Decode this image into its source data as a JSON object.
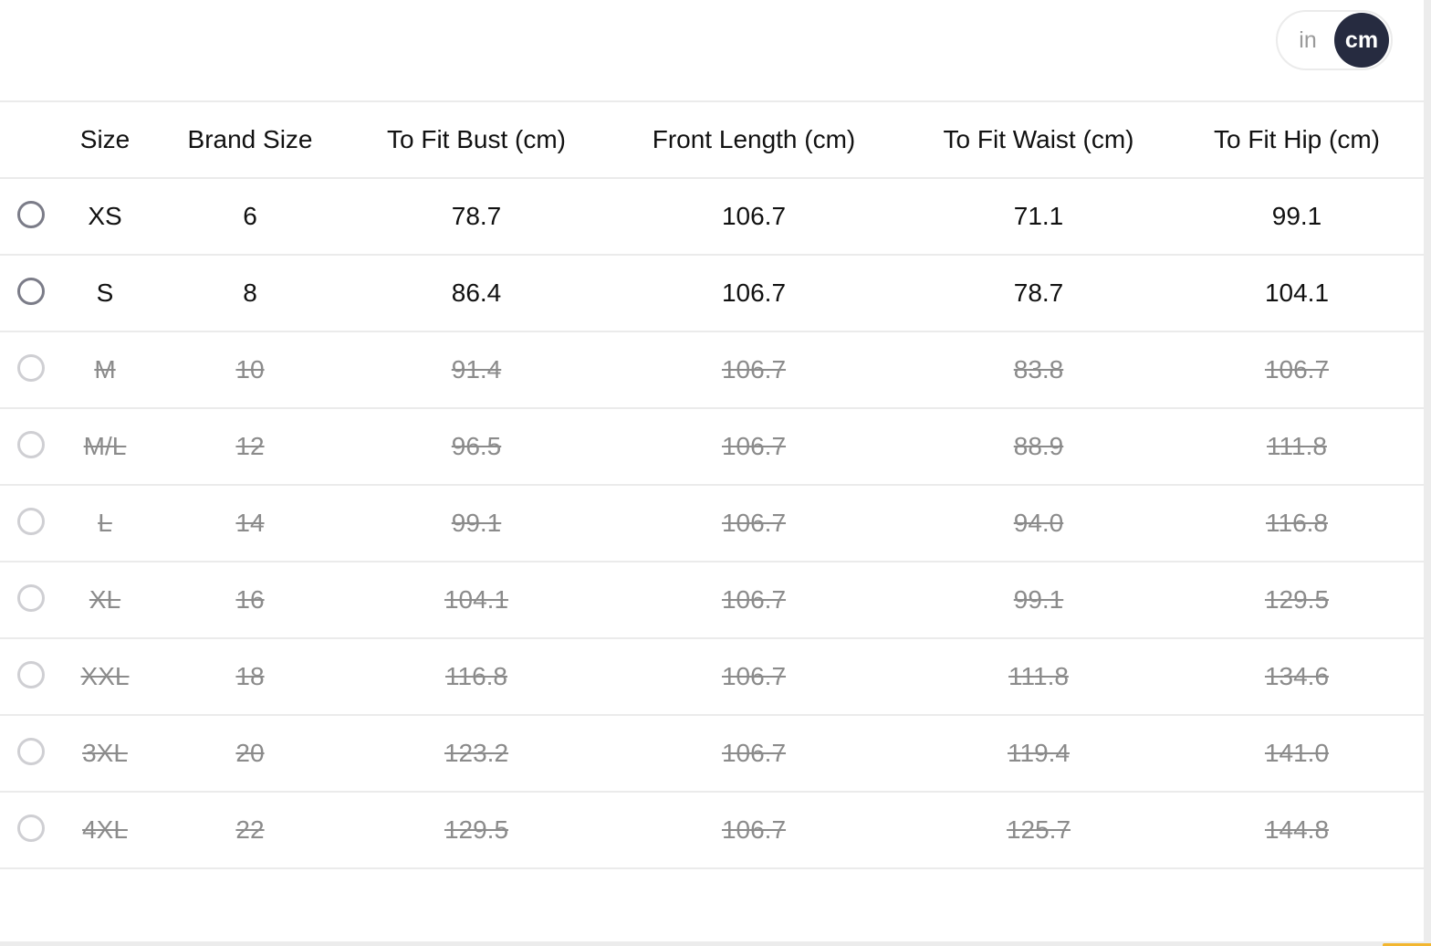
{
  "unit_toggle": {
    "options": [
      "in",
      "cm"
    ],
    "selected": "cm",
    "active_color": "#262b40"
  },
  "table": {
    "headers": [
      "Size",
      "Brand Size",
      "To Fit Bust (cm)",
      "Front Length (cm)",
      "To Fit Waist (cm)",
      "To Fit Hip (cm)"
    ],
    "rows": [
      {
        "available": true,
        "cells": [
          "XS",
          "6",
          "78.7",
          "106.7",
          "71.1",
          "99.1"
        ]
      },
      {
        "available": true,
        "cells": [
          "S",
          "8",
          "86.4",
          "106.7",
          "78.7",
          "104.1"
        ]
      },
      {
        "available": false,
        "cells": [
          "M",
          "10",
          "91.4",
          "106.7",
          "83.8",
          "106.7"
        ]
      },
      {
        "available": false,
        "cells": [
          "M/L",
          "12",
          "96.5",
          "106.7",
          "88.9",
          "111.8"
        ]
      },
      {
        "available": false,
        "cells": [
          "L",
          "14",
          "99.1",
          "106.7",
          "94.0",
          "116.8"
        ]
      },
      {
        "available": false,
        "cells": [
          "XL",
          "16",
          "104.1",
          "106.7",
          "99.1",
          "129.5"
        ]
      },
      {
        "available": false,
        "cells": [
          "XXL",
          "18",
          "116.8",
          "106.7",
          "111.8",
          "134.6"
        ]
      },
      {
        "available": false,
        "cells": [
          "3XL",
          "20",
          "123.2",
          "106.7",
          "119.4",
          "141.0"
        ]
      },
      {
        "available": false,
        "cells": [
          "4XL",
          "22",
          "129.5",
          "106.7",
          "125.7",
          "144.8"
        ]
      }
    ]
  }
}
